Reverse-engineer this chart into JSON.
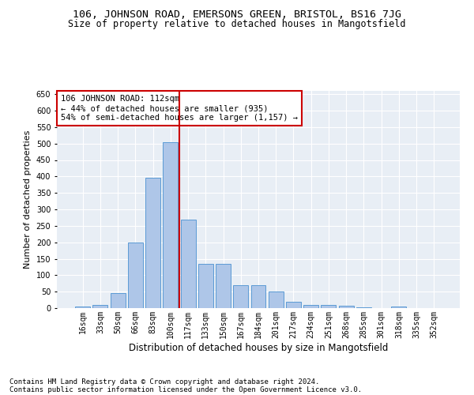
{
  "title1": "106, JOHNSON ROAD, EMERSONS GREEN, BRISTOL, BS16 7JG",
  "title2": "Size of property relative to detached houses in Mangotsfield",
  "xlabel": "Distribution of detached houses by size in Mangotsfield",
  "ylabel": "Number of detached properties",
  "categories": [
    "16sqm",
    "33sqm",
    "50sqm",
    "66sqm",
    "83sqm",
    "100sqm",
    "117sqm",
    "133sqm",
    "150sqm",
    "167sqm",
    "184sqm",
    "201sqm",
    "217sqm",
    "234sqm",
    "251sqm",
    "268sqm",
    "285sqm",
    "301sqm",
    "318sqm",
    "335sqm",
    "352sqm"
  ],
  "values": [
    5,
    10,
    45,
    200,
    395,
    505,
    270,
    135,
    135,
    70,
    70,
    50,
    20,
    10,
    10,
    8,
    3,
    1,
    5,
    1,
    1
  ],
  "bar_color": "#aec6e8",
  "bar_edge_color": "#5b9bd5",
  "vline_x": 5.5,
  "vline_color": "#cc0000",
  "annotation_line1": "106 JOHNSON ROAD: 112sqm",
  "annotation_line2": "← 44% of detached houses are smaller (935)",
  "annotation_line3": "54% of semi-detached houses are larger (1,157) →",
  "annotation_box_color": "#ffffff",
  "annotation_box_edge": "#cc0000",
  "ylim": [
    0,
    660
  ],
  "yticks": [
    0,
    50,
    100,
    150,
    200,
    250,
    300,
    350,
    400,
    450,
    500,
    550,
    600,
    650
  ],
  "background_color": "#e8eef5",
  "footer1": "Contains HM Land Registry data © Crown copyright and database right 2024.",
  "footer2": "Contains public sector information licensed under the Open Government Licence v3.0.",
  "title1_fontsize": 9.5,
  "title2_fontsize": 8.5,
  "xlabel_fontsize": 8.5,
  "ylabel_fontsize": 8,
  "tick_fontsize": 7,
  "annotation_fontsize": 7.5,
  "footer_fontsize": 6.5
}
